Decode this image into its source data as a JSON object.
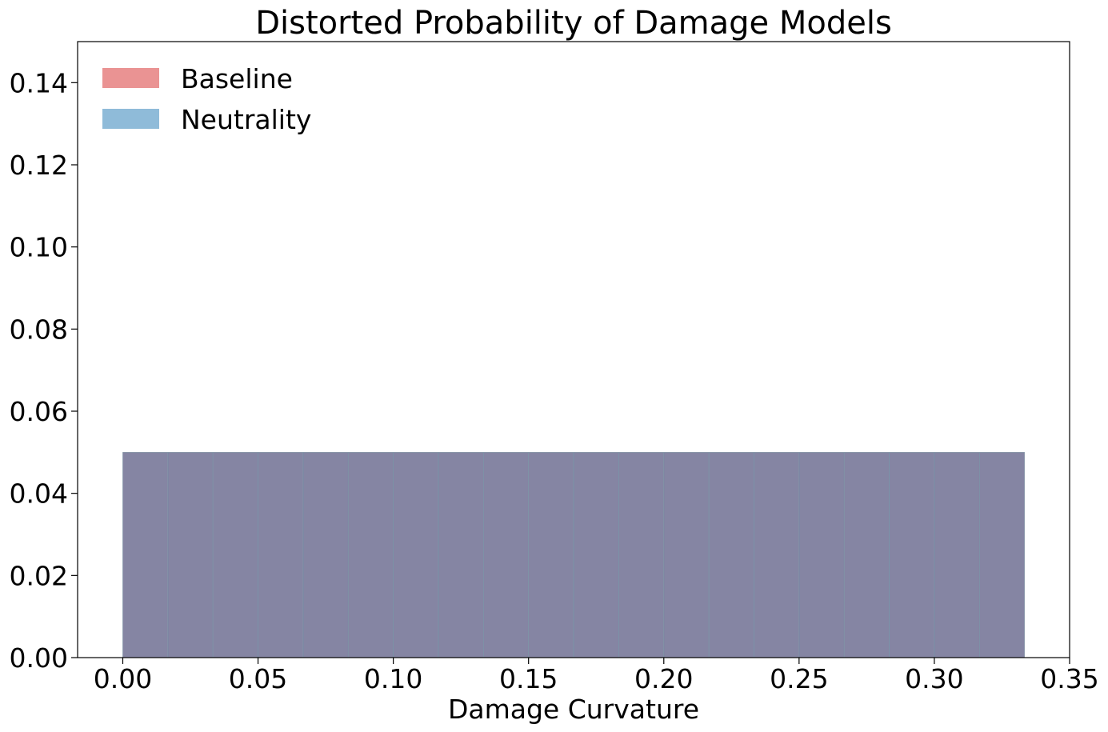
{
  "chart_data": {
    "type": "bar",
    "title": "Distorted Probability of Damage Models",
    "xlabel": "Damage Curvature",
    "ylabel": "",
    "xlim": [
      -0.0167,
      0.35
    ],
    "ylim": [
      0.0,
      0.15
    ],
    "xticks": [
      "0.00",
      "0.05",
      "0.10",
      "0.15",
      "0.20",
      "0.25",
      "0.30",
      "0.35"
    ],
    "yticks": [
      "0.00",
      "0.02",
      "0.04",
      "0.06",
      "0.08",
      "0.10",
      "0.12",
      "0.14"
    ],
    "grid": false,
    "legend_position": "upper-left",
    "bin_edges": [
      0.0,
      0.01667,
      0.03333,
      0.05,
      0.06667,
      0.08333,
      0.1,
      0.11667,
      0.13333,
      0.15,
      0.16667,
      0.18333,
      0.2,
      0.21667,
      0.23333,
      0.25,
      0.26667,
      0.28333,
      0.3,
      0.31667,
      0.33333
    ],
    "series": [
      {
        "name": "Baseline",
        "color": "#d62728",
        "opacity": 0.5,
        "values": [
          0.05,
          0.05,
          0.05,
          0.05,
          0.05,
          0.05,
          0.05,
          0.05,
          0.05,
          0.05,
          0.05,
          0.05,
          0.05,
          0.05,
          0.05,
          0.05,
          0.05,
          0.05,
          0.05,
          0.05
        ]
      },
      {
        "name": "Neutrality",
        "color": "#1f77b4",
        "opacity": 0.5,
        "values": [
          0.05,
          0.05,
          0.05,
          0.05,
          0.05,
          0.05,
          0.05,
          0.05,
          0.05,
          0.05,
          0.05,
          0.05,
          0.05,
          0.05,
          0.05,
          0.05,
          0.05,
          0.05,
          0.05,
          0.05
        ]
      }
    ],
    "overlap_color": "#84869f"
  }
}
